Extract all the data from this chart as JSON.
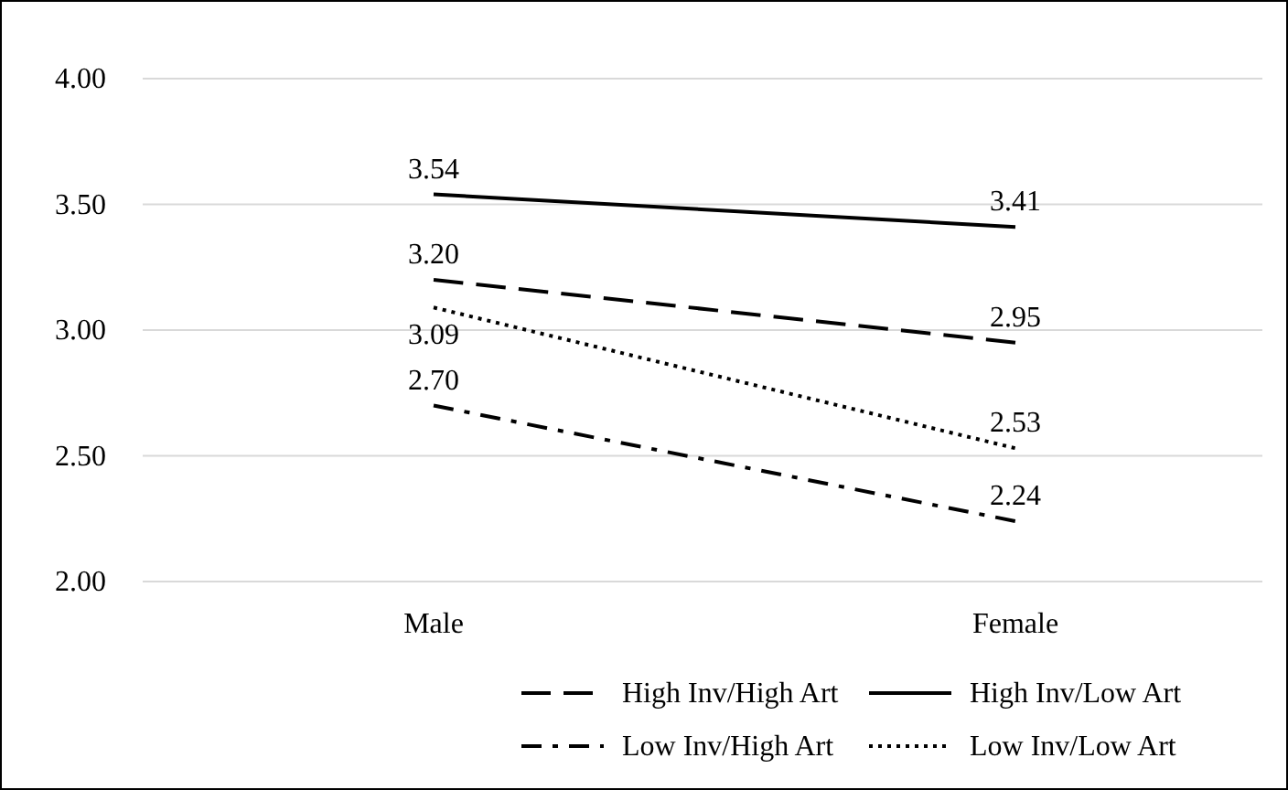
{
  "chart_data": {
    "type": "line",
    "categories": [
      "Male",
      "Female"
    ],
    "ylim": [
      2,
      4
    ],
    "yticks": [
      {
        "value": 2,
        "label": "2.00"
      },
      {
        "value": 2.5,
        "label": "2.50"
      },
      {
        "value": 3,
        "label": "3.00"
      },
      {
        "value": 3.5,
        "label": "3.50"
      },
      {
        "value": 4,
        "label": "4.00"
      }
    ],
    "grid": "y",
    "legend": "bottom",
    "series": [
      {
        "name": "High Inv/High Art",
        "color": "#000000",
        "line_style": "dashed",
        "values": [
          3.2,
          2.95
        ],
        "value_labels": [
          "3.20",
          "2.95"
        ]
      },
      {
        "name": "High Inv/Low Art",
        "color": "#000000",
        "line_style": "solid",
        "values": [
          3.54,
          3.41
        ],
        "value_labels": [
          "3.54",
          "3.41"
        ]
      },
      {
        "name": "Low Inv/High Art",
        "color": "#000000",
        "line_style": "dashdot",
        "values": [
          2.7,
          2.24
        ],
        "value_labels": [
          "2.70",
          "2.24"
        ]
      },
      {
        "name": "Low Inv/Low Art",
        "color": "#000000",
        "line_style": "dotted",
        "values": [
          3.09,
          2.53
        ],
        "value_labels": [
          "3.09",
          "2.53"
        ]
      }
    ]
  }
}
